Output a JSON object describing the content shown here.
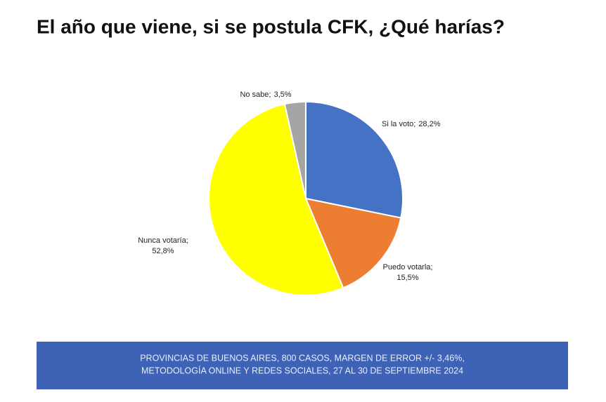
{
  "chart_data": {
    "type": "pie",
    "title": "El año que viene, si se postula CFK, ¿Qué harías?",
    "categories": [
      "Si la voto;",
      "Puedo votarla;",
      "Nunca votaría;",
      "No sabe;"
    ],
    "values": [
      28.2,
      15.5,
      52.8,
      3.5
    ],
    "value_labels": [
      "28,2%",
      "15,5%",
      "52,8%",
      "3,5%"
    ],
    "colors": [
      "#4472c4",
      "#ed7d31",
      "#ffff00",
      "#a5a5a5"
    ],
    "footer": [
      "PROVINCIAS DE BUENOS AIRES, 800 CASOS, MARGEN DE ERROR +/- 3,46%,",
      "METODOLOGÍA ONLINE Y REDES SOCIALES, 27 AL 30 DE SEPTIEMBRE 2024"
    ]
  }
}
